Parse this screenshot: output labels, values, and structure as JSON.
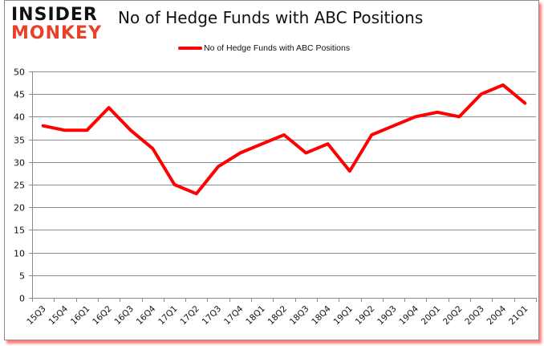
{
  "brand": {
    "logo_line1": "INSIDER",
    "logo_line2": "MONKEY"
  },
  "header": {
    "title": "No of Hedge Funds with ABC Positions"
  },
  "legend": {
    "label": "No of Hedge Funds with ABC Positions",
    "color": "#ff0000"
  },
  "chart_data": {
    "type": "line",
    "title": "No of Hedge Funds with ABC Positions",
    "xlabel": "",
    "ylabel": "",
    "ylim": [
      0,
      50
    ],
    "yticks": [
      0,
      5,
      10,
      15,
      20,
      25,
      30,
      35,
      40,
      45,
      50
    ],
    "grid": true,
    "legend_position": "top",
    "categories": [
      "15Q3",
      "15Q4",
      "16Q1",
      "16Q2",
      "16Q3",
      "16Q4",
      "17Q1",
      "17Q2",
      "17Q3",
      "17Q4",
      "18Q1",
      "18Q2",
      "18Q3",
      "18Q4",
      "19Q1",
      "19Q2",
      "19Q3",
      "19Q4",
      "20Q1",
      "20Q2",
      "20Q3",
      "20Q4",
      "21Q1"
    ],
    "series": [
      {
        "name": "No of Hedge Funds with ABC Positions",
        "color": "#ff0000",
        "values": [
          38,
          37,
          37,
          42,
          37,
          33,
          25,
          23,
          29,
          32,
          34,
          36,
          32,
          34,
          28,
          36,
          38,
          40,
          41,
          40,
          45,
          47,
          43
        ]
      }
    ]
  }
}
